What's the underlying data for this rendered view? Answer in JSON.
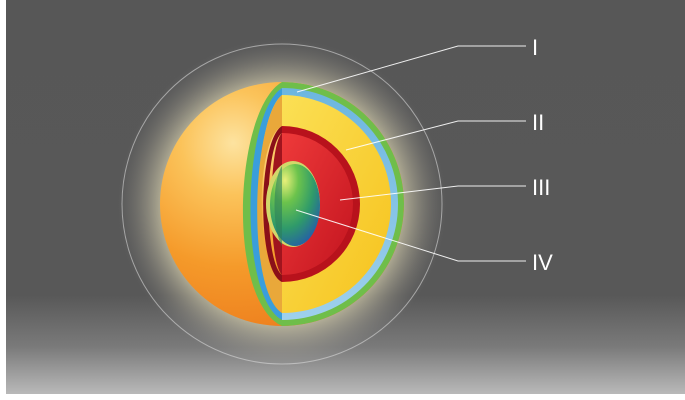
{
  "diagram": {
    "labels": [
      {
        "id": "I",
        "text": "I"
      },
      {
        "id": "II",
        "text": "II"
      },
      {
        "id": "III",
        "text": "III"
      },
      {
        "id": "IV",
        "text": "IV"
      }
    ]
  },
  "colors": {
    "background_top": "#555555",
    "background_bottom": "#b8b8b8",
    "glow": "#f7e6a0",
    "outer_sphere": "#f7a52a",
    "layer_I_green": "#62b347",
    "layer_I_blue": "#3aa9df",
    "layer_II_yellow": "#f8d231",
    "layer_III_red": "#d8232e",
    "core_IV_green": "#5fbf4a",
    "core_IV_blue": "#2a64b0",
    "leader_lines": "#ffffff"
  }
}
